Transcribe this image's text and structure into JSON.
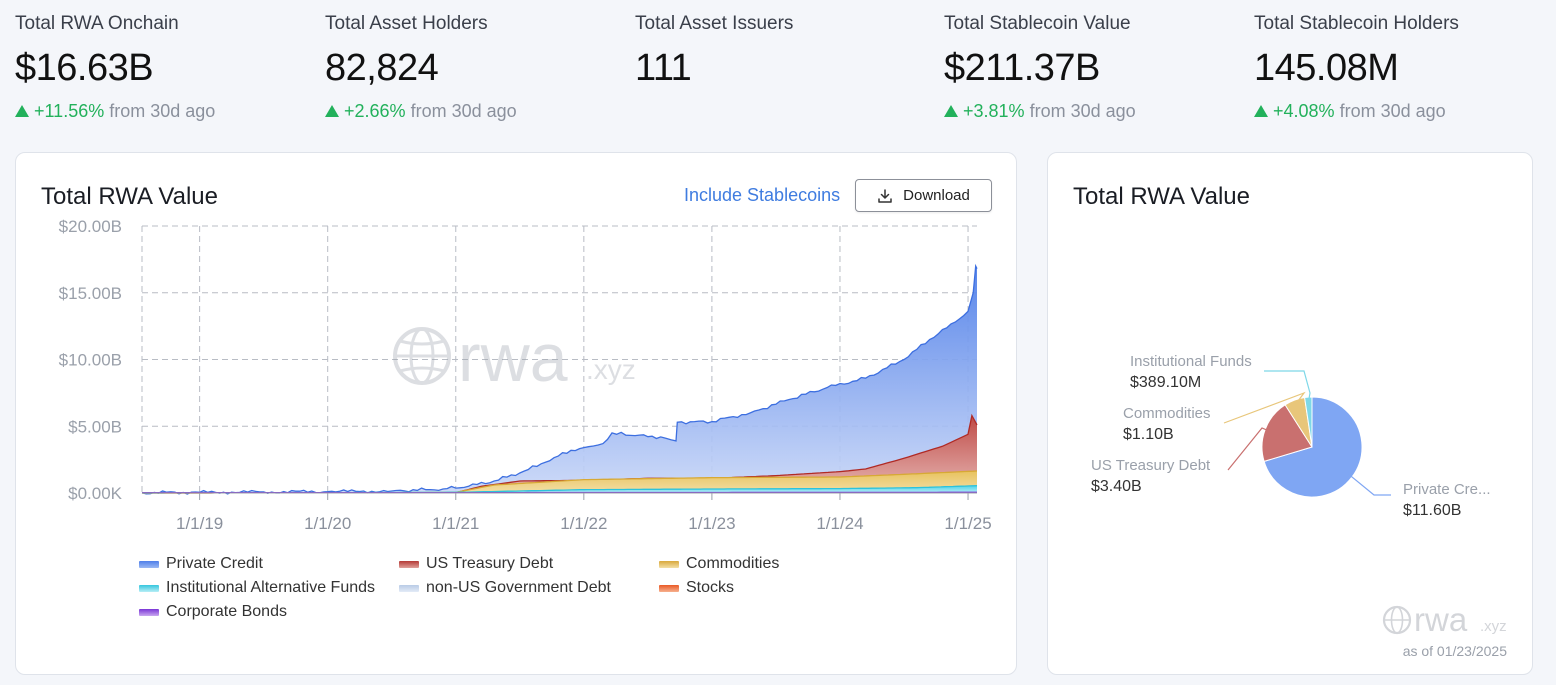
{
  "stats": [
    {
      "label": "Total RWA Onchain",
      "value": "$16.63B",
      "change": "+11.56%",
      "suffix": "from 30d ago"
    },
    {
      "label": "Total Asset Holders",
      "value": "82,824",
      "change": "+2.66%",
      "suffix": "from 30d ago"
    },
    {
      "label": "Total Asset Issuers",
      "value": "111"
    },
    {
      "label": "Total Stablecoin Value",
      "value": "$211.37B",
      "change": "+3.81%",
      "suffix": "from 30d ago"
    },
    {
      "label": "Total Stablecoin Holders",
      "value": "145.08M",
      "change": "+4.08%",
      "suffix": "from 30d ago"
    }
  ],
  "line_card": {
    "title": "Total RWA Value",
    "toggle_label": "Include Stablecoins",
    "download_label": "Download",
    "watermark_main": "rwa",
    "watermark_suffix": ".xyz"
  },
  "pie_card": {
    "title": "Total RWA Value",
    "watermark_main": "rwa",
    "watermark_suffix": ".xyz",
    "as_of": "as of 01/23/2025"
  },
  "colors": {
    "private_credit": "#5b8def",
    "us_treasury": "#b53a36",
    "commodities": "#e8c25e",
    "inst_funds": "#4fd3e8",
    "non_us_gov": "#c9d8ee",
    "stocks": "#f0733a",
    "corp_bonds": "#8a4ae0",
    "positive": "#22b15b"
  },
  "chart_data": [
    {
      "type": "area",
      "title": "Total RWA Value",
      "stacked": false,
      "x_ticks": [
        "1/1/19",
        "1/1/20",
        "1/1/21",
        "1/1/22",
        "1/1/23",
        "1/1/24",
        "1/1/25"
      ],
      "x_range": [
        2018.55,
        2025.07
      ],
      "y_ticks": [
        "$0.00K",
        "$5.00B",
        "$10.00B",
        "$15.00B",
        "$20.00B"
      ],
      "ylim": [
        0,
        20
      ],
      "y_unit": "B USD",
      "grid": true,
      "legend": [
        {
          "name": "Private Credit",
          "color_key": "private_credit"
        },
        {
          "name": "US Treasury Debt",
          "color_key": "us_treasury"
        },
        {
          "name": "Commodities",
          "color_key": "commodities"
        },
        {
          "name": "Institutional Alternative Funds",
          "color_key": "inst_funds"
        },
        {
          "name": "non-US Government Debt",
          "color_key": "non_us_gov"
        },
        {
          "name": "Stocks",
          "color_key": "stocks"
        },
        {
          "name": "Corporate Bonds",
          "color_key": "corp_bonds"
        }
      ],
      "series": [
        {
          "name": "Private Credit",
          "color_key": "private_credit",
          "x": [
            2018.55,
            2019.0,
            2019.5,
            2020.0,
            2020.5,
            2020.9,
            2021.1,
            2021.3,
            2021.5,
            2021.7,
            2021.9,
            2022.0,
            2022.15,
            2022.22,
            2022.4,
            2022.6,
            2022.72,
            2022.73,
            2023.0,
            2023.3,
            2023.6,
            2023.9,
            2024.2,
            2024.5,
            2024.7,
            2024.9,
            2025.0,
            2025.04,
            2025.06,
            2025.07
          ],
          "values": [
            0.02,
            0.05,
            0.08,
            0.1,
            0.15,
            0.3,
            0.5,
            0.9,
            1.5,
            2.3,
            3.2,
            3.4,
            3.7,
            4.5,
            4.3,
            4.2,
            3.9,
            5.3,
            5.35,
            6.0,
            7.0,
            7.9,
            8.6,
            10.0,
            11.5,
            12.8,
            13.6,
            15.0,
            17.0,
            16.8
          ]
        },
        {
          "name": "US Treasury Debt",
          "color_key": "us_treasury",
          "x": [
            2018.55,
            2020.0,
            2021.0,
            2021.2,
            2021.5,
            2022.0,
            2022.5,
            2023.0,
            2023.5,
            2024.0,
            2024.2,
            2024.5,
            2024.8,
            2025.0,
            2025.03,
            2025.07
          ],
          "values": [
            0.0,
            0.01,
            0.03,
            0.5,
            0.9,
            0.95,
            1.1,
            1.1,
            1.3,
            1.6,
            1.8,
            2.6,
            3.5,
            4.4,
            5.8,
            5.1
          ]
        },
        {
          "name": "Commodities",
          "color_key": "commodities",
          "x": [
            2018.55,
            2020.0,
            2021.0,
            2021.3,
            2022.0,
            2023.0,
            2024.0,
            2024.5,
            2025.07
          ],
          "values": [
            0.0,
            0.01,
            0.05,
            0.6,
            1.0,
            1.15,
            1.2,
            1.4,
            1.65
          ]
        },
        {
          "name": "Institutional Alternative Funds",
          "color_key": "inst_funds",
          "x": [
            2018.55,
            2021.0,
            2022.0,
            2023.0,
            2024.0,
            2024.6,
            2025.07
          ],
          "values": [
            0.0,
            0.05,
            0.25,
            0.3,
            0.33,
            0.4,
            0.55
          ]
        },
        {
          "name": "Corporate Bonds",
          "color_key": "corp_bonds",
          "x": [
            2018.55,
            2025.07
          ],
          "values": [
            0.02,
            0.05
          ]
        }
      ]
    },
    {
      "type": "pie",
      "title": "Total RWA Value",
      "slices": [
        {
          "label": "Private Credit",
          "display_label": "Private Cre...",
          "value": 11.6,
          "value_label": "$11.60B",
          "color": "#7fa6f3"
        },
        {
          "label": "US Treasury Debt",
          "display_label": "US Treasury Debt",
          "value": 3.4,
          "value_label": "$3.40B",
          "color": "#c9706f"
        },
        {
          "label": "Commodities",
          "display_label": "Commodities",
          "value": 1.1,
          "value_label": "$1.10B",
          "color": "#e8c67a"
        },
        {
          "label": "Institutional Funds",
          "display_label": "Institutional Funds",
          "value": 0.3891,
          "value_label": "$389.10M",
          "color": "#7ed8e8"
        }
      ]
    }
  ]
}
